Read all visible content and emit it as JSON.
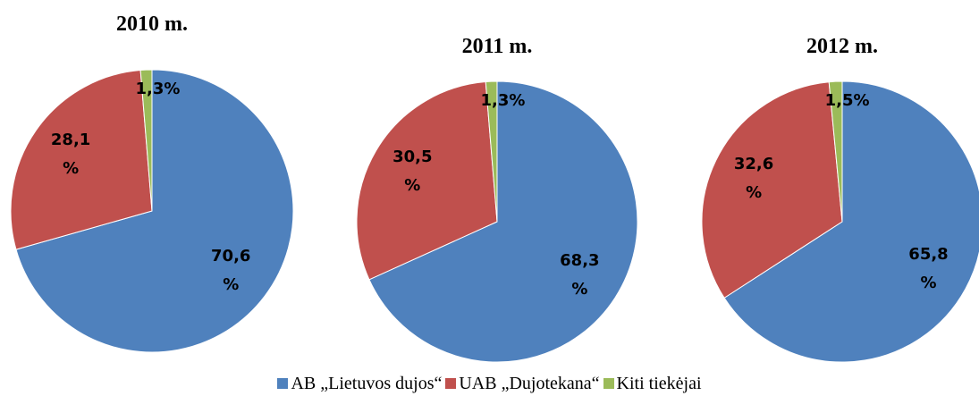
{
  "chart_data": [
    {
      "type": "pie",
      "title": "2010 m.",
      "categories": [
        "AB „Lietuvos dujos“",
        "UAB „Dujotekana“",
        "Kiti tiekėjai"
      ],
      "values": [
        70.6,
        28.1,
        1.3
      ],
      "value_labels": [
        "70,6 %",
        "28,1 %",
        "1,3%"
      ],
      "colors": [
        "#4f81bd",
        "#c0504d",
        "#9bbb59"
      ]
    },
    {
      "type": "pie",
      "title": "2011 m.",
      "categories": [
        "AB „Lietuvos dujos“",
        "UAB „Dujotekana“",
        "Kiti tiekėjai"
      ],
      "values": [
        68.3,
        30.5,
        1.3
      ],
      "value_labels": [
        "68,3 %",
        "30,5 %",
        "1,3%"
      ],
      "colors": [
        "#4f81bd",
        "#c0504d",
        "#9bbb59"
      ]
    },
    {
      "type": "pie",
      "title": "2012 m.",
      "categories": [
        "AB „Lietuvos dujos“",
        "UAB „Dujotekana“",
        "Kiti tiekėjai"
      ],
      "values": [
        65.8,
        32.6,
        1.5
      ],
      "value_labels": [
        "65,8 %",
        "32,6 %",
        "1,5%"
      ],
      "colors": [
        "#4f81bd",
        "#c0504d",
        "#9bbb59"
      ]
    }
  ]
}
